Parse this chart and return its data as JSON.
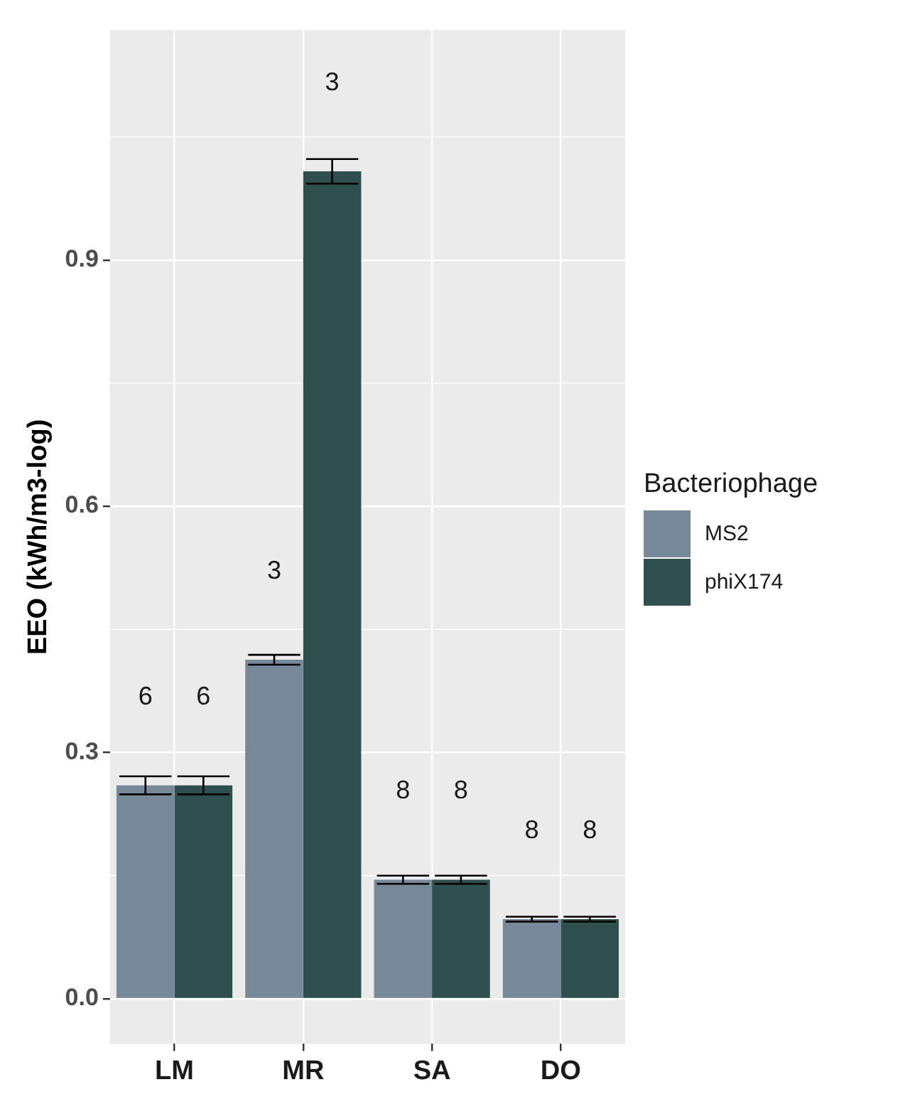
{
  "chart_data": {
    "type": "bar",
    "categories": [
      "LM",
      "MR",
      "SA",
      "DO"
    ],
    "ylabel": "EEO (kWh/m3-log)",
    "legend_title": "Bacteriophage",
    "legend": "right",
    "grid": true,
    "ylim": [
      -0.055,
      1.18
    ],
    "yticks": [
      {
        "value": 0,
        "label": "0.0"
      },
      {
        "value": 0.3,
        "label": "0.3"
      },
      {
        "value": 0.6,
        "label": "0.6"
      },
      {
        "value": 0.9,
        "label": "0.9"
      }
    ],
    "series": [
      {
        "name": "MS2",
        "color": "#778899",
        "values": [
          0.26,
          0.413,
          0.145,
          0.097
        ],
        "errors": [
          0.011,
          0.006,
          0.005,
          0.003
        ]
      },
      {
        "name": "phiX174",
        "color": "#2f4f4f",
        "values": [
          0.26,
          1.008,
          0.145,
          0.097
        ],
        "errors": [
          0.011,
          0.015,
          0.005,
          0.003
        ]
      }
    ],
    "annotations": [
      "6",
      "6",
      "3",
      "3",
      "8",
      "8",
      "8",
      "8"
    ]
  }
}
